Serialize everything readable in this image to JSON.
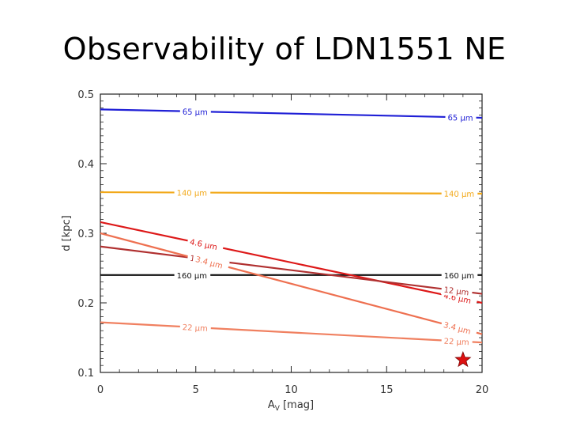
{
  "slide": {
    "title": "Observability of LDN1551 NE"
  },
  "chart_data": {
    "type": "line",
    "title": "",
    "xlabel": "Av [mag]",
    "xlabel_main": "A",
    "xlabel_sub": "V",
    "xlabel_rest": " [mag]",
    "ylabel": "d [kpc]",
    "xlim": [
      0,
      20
    ],
    "ylim": [
      0.1,
      0.5
    ],
    "xticks": [
      0,
      5,
      10,
      15,
      20
    ],
    "xtick_labels": [
      "0",
      "5",
      "10",
      "15",
      "20"
    ],
    "yticks": [
      0.1,
      0.2,
      0.3,
      0.4,
      0.5
    ],
    "ytick_labels": [
      "0.1",
      "0.2",
      "0.3",
      "0.4",
      "0.5"
    ],
    "grid": false,
    "legend": "none",
    "series": [
      {
        "name": "65 μm",
        "label": "65 μm",
        "color": "#1f1fd6",
        "x": [
          0,
          20
        ],
        "y": [
          0.478,
          0.466
        ],
        "label_at": [
          4.3,
          18.2
        ]
      },
      {
        "name": "140 μm",
        "label": "140 μm",
        "color": "#f2a818",
        "x": [
          0,
          20
        ],
        "y": [
          0.359,
          0.357
        ],
        "label_at": [
          4.0,
          18.0
        ]
      },
      {
        "name": "160 μm",
        "label": "160 μm",
        "color": "#111111",
        "x": [
          0,
          20
        ],
        "y": [
          0.24,
          0.24
        ],
        "label_at": [
          4.0,
          18.0
        ]
      },
      {
        "name": "4.6 μm",
        "label": "4.6 μm",
        "color": "#dd1818",
        "x": [
          0,
          20
        ],
        "y": [
          0.316,
          0.2
        ],
        "label_at": [
          4.7,
          18.0
        ]
      },
      {
        "name": "12 μm",
        "label": "12 μm",
        "color": "#b03030",
        "x": [
          0,
          20
        ],
        "y": [
          0.281,
          0.213
        ],
        "label_at": [
          4.7,
          18.0
        ]
      },
      {
        "name": "3.4 μm",
        "label": "3.4 μm",
        "color": "#ee7050",
        "x": [
          0,
          20
        ],
        "y": [
          0.3,
          0.155
        ],
        "label_at": [
          5.0,
          18.0
        ]
      },
      {
        "name": "22 μm",
        "label": "22 μm",
        "color": "#f08060",
        "x": [
          0,
          20
        ],
        "y": [
          0.172,
          0.143
        ],
        "label_at": [
          4.3,
          18.0
        ]
      }
    ],
    "marker": {
      "type": "star",
      "x": 19,
      "y": 0.118,
      "color": "#dd1111"
    }
  }
}
